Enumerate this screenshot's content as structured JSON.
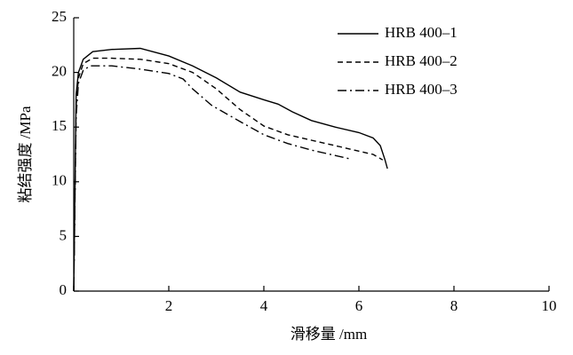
{
  "chart_data": {
    "type": "line",
    "xlabel": "滑移量 /mm",
    "ylabel": "粘结强度 /MPa",
    "xlim": [
      0,
      10
    ],
    "xticks": [
      2,
      4,
      6,
      8,
      10
    ],
    "ylim": [
      0,
      25
    ],
    "yticks": [
      0,
      5,
      10,
      15,
      20,
      25
    ],
    "legend": "upper right",
    "series": [
      {
        "name": "HRB 400–1",
        "color": "#000000",
        "dash": "solid",
        "x": [
          0,
          0.05,
          0.1,
          0.2,
          0.4,
          0.8,
          1.4,
          2.0,
          2.5,
          3.0,
          3.5,
          4.0,
          4.3,
          4.6,
          5.0,
          5.5,
          6.0,
          6.3,
          6.45,
          6.55,
          6.6
        ],
        "values": [
          0,
          18,
          20,
          21.2,
          21.9,
          22.1,
          22.2,
          21.5,
          20.6,
          19.5,
          18.2,
          17.5,
          17.1,
          16.4,
          15.6,
          15,
          14.5,
          14,
          13.3,
          12,
          11.2
        ]
      },
      {
        "name": "HRB 400–2",
        "color": "#000000",
        "dash": "dashed",
        "x": [
          0,
          0.05,
          0.1,
          0.2,
          0.4,
          0.8,
          1.4,
          2.0,
          2.5,
          3.0,
          3.5,
          4.0,
          4.5,
          5.0,
          5.5,
          6.0,
          6.3,
          6.5
        ],
        "values": [
          0,
          17,
          19.5,
          20.8,
          21.3,
          21.3,
          21.2,
          20.8,
          20,
          18.5,
          16.6,
          15.1,
          14.3,
          13.8,
          13.3,
          12.8,
          12.5,
          12
        ]
      },
      {
        "name": "HRB 400–3",
        "color": "#000000",
        "dash": "dashdot",
        "x": [
          0,
          0.05,
          0.1,
          0.2,
          0.35,
          0.8,
          1.4,
          2.0,
          2.3,
          2.5,
          2.9,
          3.5,
          4.0,
          4.5,
          5.0,
          5.5,
          5.8
        ],
        "values": [
          0,
          16,
          19,
          20.2,
          20.6,
          20.6,
          20.3,
          19.9,
          19.4,
          18.5,
          17,
          15.5,
          14.3,
          13.5,
          12.9,
          12.4,
          12.1
        ]
      }
    ]
  }
}
